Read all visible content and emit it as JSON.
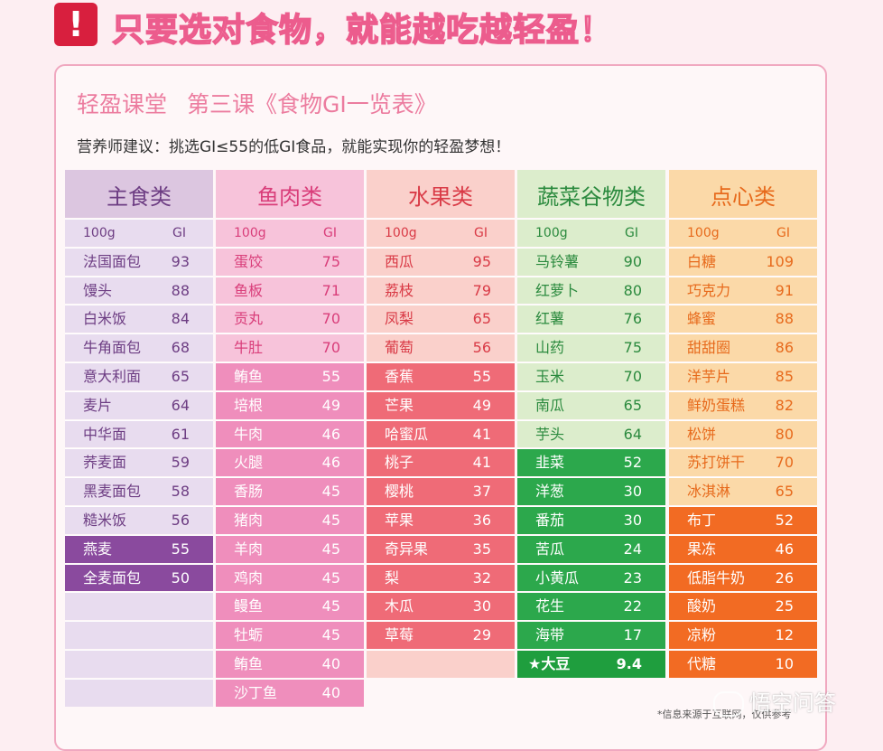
{
  "banner": {
    "mark": "!",
    "headline": "只要选对食物，就能越吃越轻盈！"
  },
  "lesson": {
    "part1": "轻盈课堂",
    "part2": "第三课《食物GI一览表》"
  },
  "advice": "营养师建议：挑选GI≤55的低GI食品，就能实现你的轻盈梦想！",
  "colors": {
    "zhushi": {
      "head": "#dcc6e0",
      "light": "#e8dcef",
      "dark": "#8a4a9e",
      "head_text": "#6d3d83",
      "light_text": "#6d3d83",
      "dark_text": "#ffffff"
    },
    "yurou": {
      "head": "#f7c3da",
      "light": "#f7c3da",
      "dark": "#ef8ebc",
      "head_text": "#d93e7a",
      "light_text": "#d93e7a",
      "dark_text": "#ffffff"
    },
    "shuiguo": {
      "head": "#fad0cb",
      "light": "#fad0cb",
      "dark": "#ef6b77",
      "head_text": "#d93a46",
      "light_text": "#d93a46",
      "dark_text": "#ffffff"
    },
    "shucai": {
      "head": "#dcedcc",
      "light": "#dcedcc",
      "dark": "#2ca84c",
      "head_text": "#2b8a3e",
      "light_text": "#2b8a3e",
      "dark_text": "#ffffff"
    },
    "dianxin": {
      "head": "#fbd9a8",
      "light": "#fbd9a8",
      "dark": "#f26b23",
      "head_text": "#e76a1c",
      "light_text": "#e76a1c",
      "dark_text": "#ffffff"
    }
  },
  "table": {
    "sub_header": {
      "unit": "100g",
      "gi": "GI"
    },
    "columns": [
      {
        "key": "zhushi",
        "title": "主食类",
        "rows_total": 17,
        "items": [
          {
            "name": "法国面包",
            "gi": "93",
            "low": false
          },
          {
            "name": "馒头",
            "gi": "88",
            "low": false
          },
          {
            "name": "白米饭",
            "gi": "84",
            "low": false
          },
          {
            "name": "牛角面包",
            "gi": "68",
            "low": false
          },
          {
            "name": "意大利面",
            "gi": "65",
            "low": false
          },
          {
            "name": "麦片",
            "gi": "64",
            "low": false
          },
          {
            "name": "中华面",
            "gi": "61",
            "low": false
          },
          {
            "name": "荞麦面",
            "gi": "59",
            "low": false
          },
          {
            "name": "黑麦面包",
            "gi": "58",
            "low": false
          },
          {
            "name": "糙米饭",
            "gi": "56",
            "low": false
          },
          {
            "name": "燕麦",
            "gi": "55",
            "low": true
          },
          {
            "name": "全麦面包",
            "gi": "50",
            "low": true
          }
        ]
      },
      {
        "key": "yurou",
        "title": "鱼肉类",
        "rows_total": 17,
        "items": [
          {
            "name": "蛋饺",
            "gi": "75",
            "low": false
          },
          {
            "name": "鱼板",
            "gi": "71",
            "low": false
          },
          {
            "name": "贡丸",
            "gi": "70",
            "low": false
          },
          {
            "name": "牛肚",
            "gi": "70",
            "low": false
          },
          {
            "name": "鲔鱼",
            "gi": "55",
            "low": true
          },
          {
            "name": "培根",
            "gi": "49",
            "low": true
          },
          {
            "name": "牛肉",
            "gi": "46",
            "low": true
          },
          {
            "name": "火腿",
            "gi": "46",
            "low": true
          },
          {
            "name": "香肠",
            "gi": "45",
            "low": true
          },
          {
            "name": "猪肉",
            "gi": "45",
            "low": true
          },
          {
            "name": "羊肉",
            "gi": "45",
            "low": true
          },
          {
            "name": "鸡肉",
            "gi": "45",
            "low": true
          },
          {
            "name": "鳗鱼",
            "gi": "45",
            "low": true
          },
          {
            "name": "牡蛎",
            "gi": "45",
            "low": true
          },
          {
            "name": "鲔鱼",
            "gi": "40",
            "low": true
          },
          {
            "name": "沙丁鱼",
            "gi": "40",
            "low": true
          }
        ]
      },
      {
        "key": "shuiguo",
        "title": "水果类",
        "rows_total": 16,
        "items": [
          {
            "name": "西瓜",
            "gi": "95",
            "low": false
          },
          {
            "name": "荔枝",
            "gi": "79",
            "low": false
          },
          {
            "name": "凤梨",
            "gi": "65",
            "low": false
          },
          {
            "name": "葡萄",
            "gi": "56",
            "low": false
          },
          {
            "name": "香蕉",
            "gi": "55",
            "low": true
          },
          {
            "name": "芒果",
            "gi": "49",
            "low": true
          },
          {
            "name": "哈蜜瓜",
            "gi": "41",
            "low": true
          },
          {
            "name": "桃子",
            "gi": "41",
            "low": true
          },
          {
            "name": "樱桃",
            "gi": "37",
            "low": true
          },
          {
            "name": "苹果",
            "gi": "36",
            "low": true
          },
          {
            "name": "奇异果",
            "gi": "35",
            "low": true
          },
          {
            "name": "梨",
            "gi": "32",
            "low": true
          },
          {
            "name": "木瓜",
            "gi": "30",
            "low": true
          },
          {
            "name": "草莓",
            "gi": "29",
            "low": true
          }
        ]
      },
      {
        "key": "shucai",
        "title": "蔬菜谷物类",
        "rows_total": 16,
        "items": [
          {
            "name": "马铃薯",
            "gi": "90",
            "low": false
          },
          {
            "name": " 红萝卜",
            "gi": "80",
            "low": false
          },
          {
            "name": "红薯",
            "gi": "76",
            "low": false
          },
          {
            "name": "山药",
            "gi": "75",
            "low": false
          },
          {
            "name": "玉米",
            "gi": "70",
            "low": false
          },
          {
            "name": "南瓜",
            "gi": "65",
            "low": false
          },
          {
            "name": "芋头",
            "gi": "64",
            "low": false
          },
          {
            "name": "韭菜",
            "gi": "52",
            "low": true
          },
          {
            "name": "洋葱",
            "gi": "30",
            "low": true
          },
          {
            "name": "番茄",
            "gi": "30",
            "low": true
          },
          {
            "name": "苦瓜",
            "gi": "24",
            "low": true
          },
          {
            "name": "小黄瓜",
            "gi": "23",
            "low": true
          },
          {
            "name": "花生",
            "gi": "22",
            "low": true
          },
          {
            "name": "海带",
            "gi": "17",
            "low": true
          },
          {
            "name": "★大豆",
            "gi": "9.4",
            "low": true,
            "star": true
          }
        ]
      },
      {
        "key": "dianxin",
        "title": "点心类",
        "rows_total": 16,
        "items": [
          {
            "name": "白糖",
            "gi": "109",
            "low": false
          },
          {
            "name": "巧克力",
            "gi": "91",
            "low": false
          },
          {
            "name": "蜂蜜",
            "gi": "88",
            "low": false
          },
          {
            "name": "甜甜圈",
            "gi": "86",
            "low": false
          },
          {
            "name": "洋芋片",
            "gi": "85",
            "low": false
          },
          {
            "name": "鲜奶蛋糕",
            "gi": "82",
            "low": false
          },
          {
            "name": "松饼",
            "gi": "80",
            "low": false
          },
          {
            "name": "苏打饼干",
            "gi": "70",
            "low": false
          },
          {
            "name": "冰淇淋",
            "gi": "65",
            "low": false
          },
          {
            "name": "布丁",
            "gi": "52",
            "low": true
          },
          {
            "name": "果冻",
            "gi": "46",
            "low": true
          },
          {
            "name": "低脂牛奶",
            "gi": "26",
            "low": true
          },
          {
            "name": "酸奶",
            "gi": "25",
            "low": true
          },
          {
            "name": "凉粉",
            "gi": "12",
            "low": true
          },
          {
            "name": "代糖",
            "gi": "10",
            "low": true
          }
        ]
      }
    ]
  },
  "footnote": "*信息来源于互联网，仅供参考",
  "watermark": "悟空问答"
}
